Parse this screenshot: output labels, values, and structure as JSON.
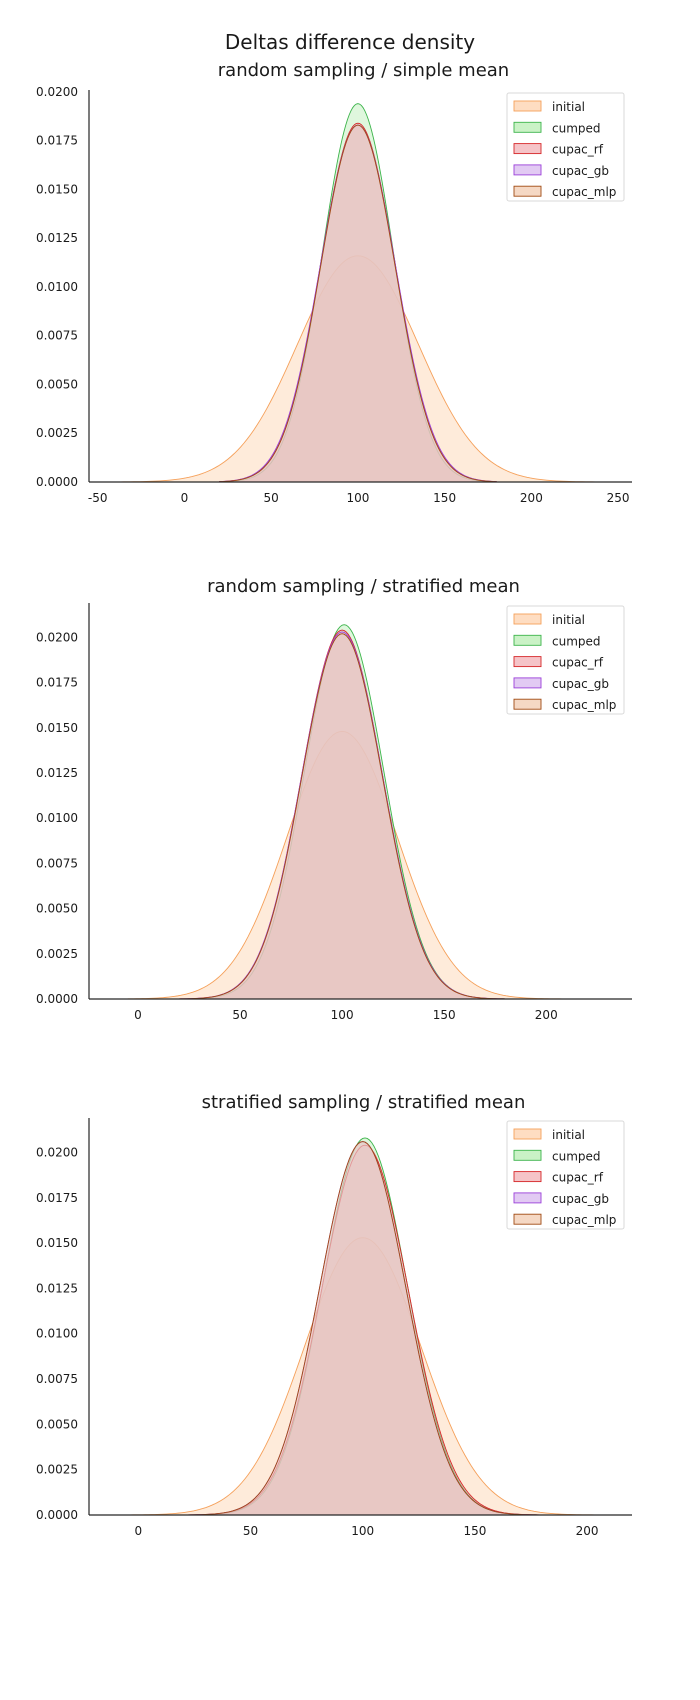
{
  "figure": {
    "suptitle": "Deltas difference density"
  },
  "chart_data": [
    {
      "type": "area",
      "title": "random sampling / simple mean",
      "xlabel": "",
      "ylabel": "",
      "xlim": [
        -55,
        258
      ],
      "ylim": [
        0,
        0.0201
      ],
      "xticks": [
        "-50",
        "0",
        "50",
        "100",
        "150",
        "200",
        "250"
      ],
      "xtick_values": [
        -50,
        0,
        50,
        100,
        150,
        200,
        250
      ],
      "yticks": [
        "0.0000",
        "0.0025",
        "0.0050",
        "0.0075",
        "0.0100",
        "0.0125",
        "0.0150",
        "0.0175",
        "0.0200"
      ],
      "ytick_values": [
        0,
        0.0025,
        0.005,
        0.0075,
        0.01,
        0.0125,
        0.015,
        0.0175,
        0.02
      ],
      "grid": false,
      "legend_position": "top-right",
      "series": [
        {
          "name": "initial",
          "mean": 100,
          "peak": 0.0116,
          "sd": 35,
          "x_range": [
            -50,
            250
          ],
          "fill": "#fdd2ad",
          "stroke": "#f5a05a"
        },
        {
          "name": "cumped",
          "mean": 100,
          "peak": 0.0194,
          "sd": 20.5,
          "x_range": [
            20,
            180
          ],
          "fill": "#b8eeb3",
          "stroke": "#3cb44b"
        },
        {
          "name": "cupac_rf",
          "mean": 100,
          "peak": 0.0184,
          "sd": 21.5,
          "x_range": [
            20,
            180
          ],
          "fill": "#f2b0b5",
          "stroke": "#d62728"
        },
        {
          "name": "cupac_gb",
          "mean": 100,
          "peak": 0.0183,
          "sd": 21.7,
          "x_range": [
            20,
            180
          ],
          "fill": "#d8b8ef",
          "stroke": "#9b3fd9"
        },
        {
          "name": "cupac_mlp",
          "mean": 100,
          "peak": 0.0183,
          "sd": 21.4,
          "x_range": [
            20,
            180
          ],
          "fill": "#f1cbb0",
          "stroke": "#a04a12"
        }
      ]
    },
    {
      "type": "area",
      "title": "random sampling / stratified mean",
      "xlabel": "",
      "ylabel": "",
      "xlim": [
        -24,
        242
      ],
      "ylim": [
        0,
        0.0219
      ],
      "xticks": [
        "0",
        "50",
        "100",
        "150",
        "200"
      ],
      "xtick_values": [
        0,
        50,
        100,
        150,
        200
      ],
      "yticks": [
        "0.0000",
        "0.0025",
        "0.0050",
        "0.0075",
        "0.0100",
        "0.0125",
        "0.0150",
        "0.0175",
        "0.0200"
      ],
      "ytick_values": [
        0,
        0.0025,
        0.005,
        0.0075,
        0.01,
        0.0125,
        0.015,
        0.0175,
        0.02
      ],
      "grid": false,
      "legend_position": "top-right",
      "series": [
        {
          "name": "initial",
          "mean": 100,
          "peak": 0.0148,
          "sd": 27,
          "x_range": [
            -5,
            225
          ],
          "fill": "#fdd2ad",
          "stroke": "#f5a05a"
        },
        {
          "name": "cumped",
          "mean": 101,
          "peak": 0.0207,
          "sd": 19.5,
          "x_range": [
            20,
            180
          ],
          "fill": "#b8eeb3",
          "stroke": "#3cb44b"
        },
        {
          "name": "cupac_rf",
          "mean": 100,
          "peak": 0.0204,
          "sd": 19.8,
          "x_range": [
            20,
            180
          ],
          "fill": "#f2b0b5",
          "stroke": "#d62728"
        },
        {
          "name": "cupac_gb",
          "mean": 100,
          "peak": 0.0203,
          "sd": 19.9,
          "x_range": [
            20,
            180
          ],
          "fill": "#d8b8ef",
          "stroke": "#9b3fd9"
        },
        {
          "name": "cupac_mlp",
          "mean": 100,
          "peak": 0.0202,
          "sd": 19.8,
          "x_range": [
            20,
            180
          ],
          "fill": "#f1cbb0",
          "stroke": "#a04a12"
        }
      ]
    },
    {
      "type": "area",
      "title": "stratified sampling / stratified mean",
      "xlabel": "",
      "ylabel": "",
      "xlim": [
        -22,
        220
      ],
      "ylim": [
        0,
        0.0219
      ],
      "xticks": [
        "0",
        "50",
        "100",
        "150",
        "200"
      ],
      "xtick_values": [
        0,
        50,
        100,
        150,
        200
      ],
      "yticks": [
        "0.0000",
        "0.0025",
        "0.0050",
        "0.0075",
        "0.0100",
        "0.0125",
        "0.0150",
        "0.0175",
        "0.0200"
      ],
      "ytick_values": [
        0,
        0.0025,
        0.005,
        0.0075,
        0.01,
        0.0125,
        0.015,
        0.0175,
        0.02
      ],
      "grid": false,
      "legend_position": "top-right",
      "series": [
        {
          "name": "initial",
          "mean": 100,
          "peak": 0.0153,
          "sd": 26,
          "x_range": [
            -5,
            210
          ],
          "fill": "#fdd2ad",
          "stroke": "#f5a05a"
        },
        {
          "name": "cumped",
          "mean": 101,
          "peak": 0.0208,
          "sd": 19,
          "x_range": [
            20,
            180
          ],
          "fill": "#b8eeb3",
          "stroke": "#3cb44b"
        },
        {
          "name": "cupac_rf",
          "mean": 101,
          "peak": 0.0204,
          "sd": 19.4,
          "x_range": [
            20,
            180
          ],
          "fill": "#f2b0b5",
          "stroke": "#d62728"
        },
        {
          "name": "cupac_gb",
          "mean": 100,
          "peak": 0.0206,
          "sd": 19.3,
          "x_range": [
            20,
            180
          ],
          "fill": "#d8b8ef",
          "stroke": "#9b3fd9"
        },
        {
          "name": "cupac_mlp",
          "mean": 100,
          "peak": 0.0206,
          "sd": 19.3,
          "x_range": [
            20,
            180
          ],
          "fill": "#f1cbb0",
          "stroke": "#a04a12"
        }
      ]
    }
  ]
}
